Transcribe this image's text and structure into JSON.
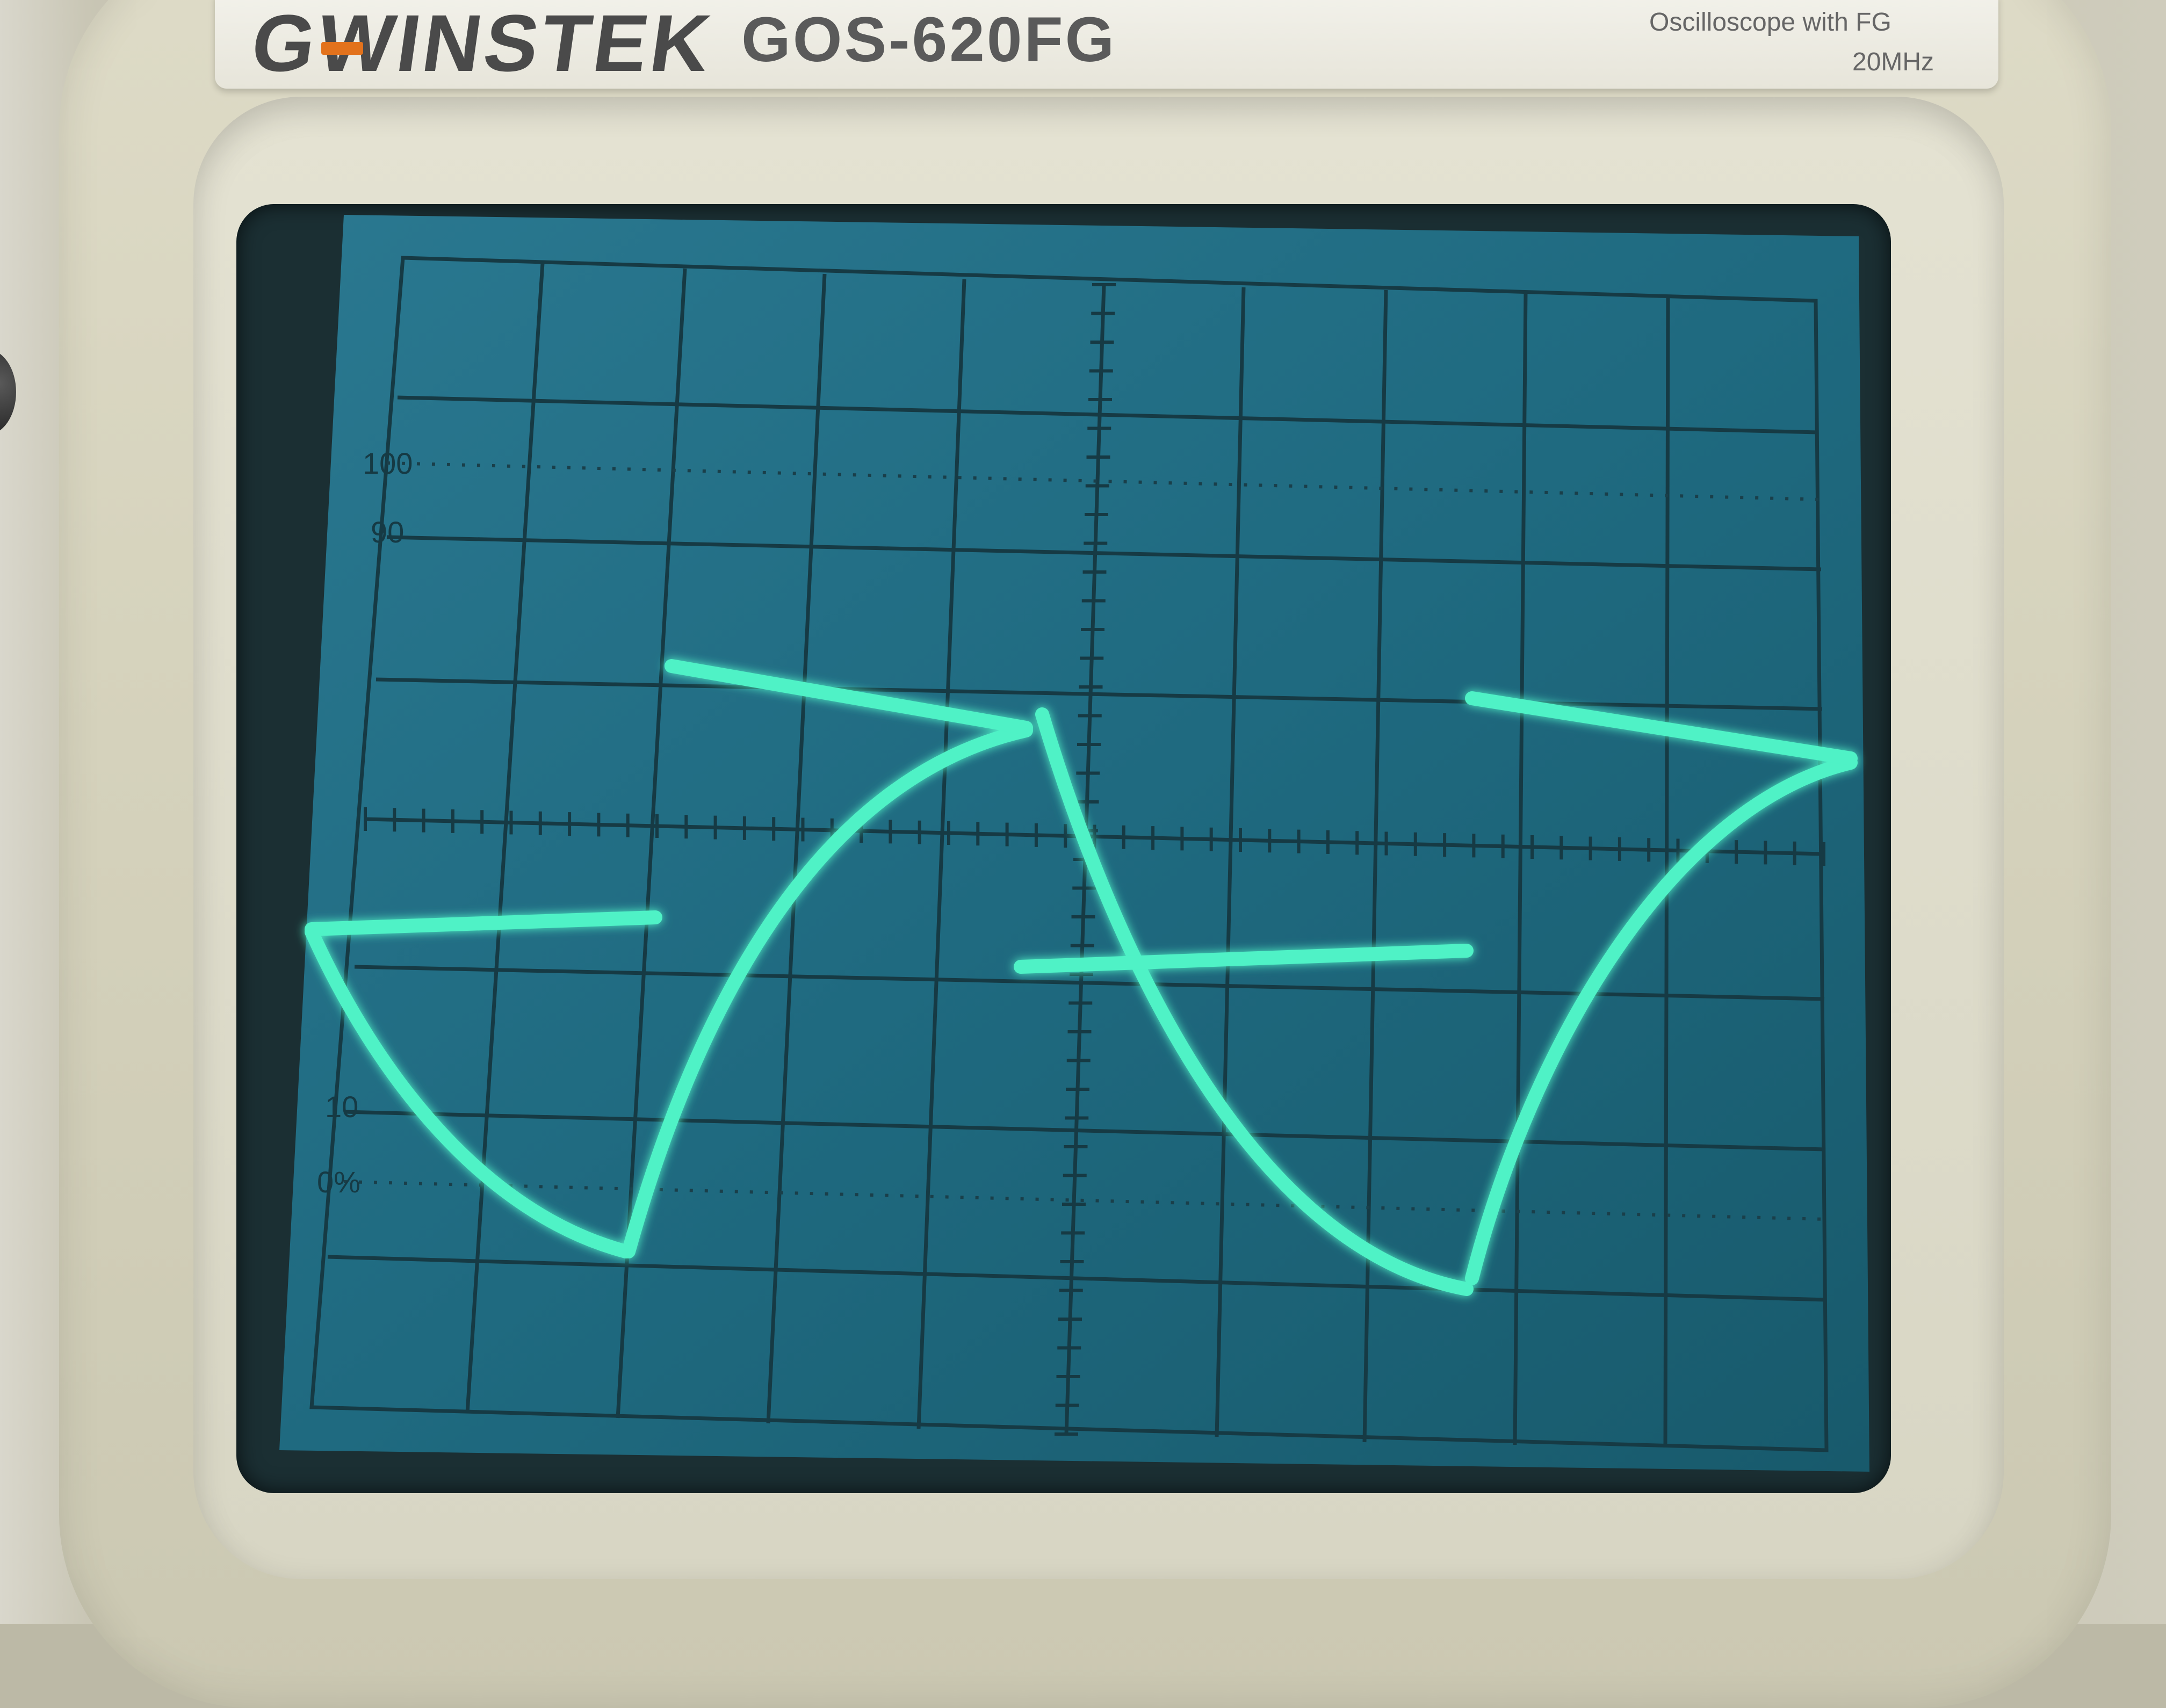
{
  "brand": "GWINSTEK",
  "model": "GOS-620FG",
  "subtitle_line1": "Oscilloscope with FG",
  "subtitle_line2": "20MHz",
  "graticule_labels": {
    "top_100": "100",
    "top_90": "90",
    "low_10": "10",
    "low_0": "0%"
  },
  "colors": {
    "screen": "#1d6479",
    "grid": "#15313a",
    "trace": "#49f0c2",
    "bezel": "#d8d6c4"
  }
}
